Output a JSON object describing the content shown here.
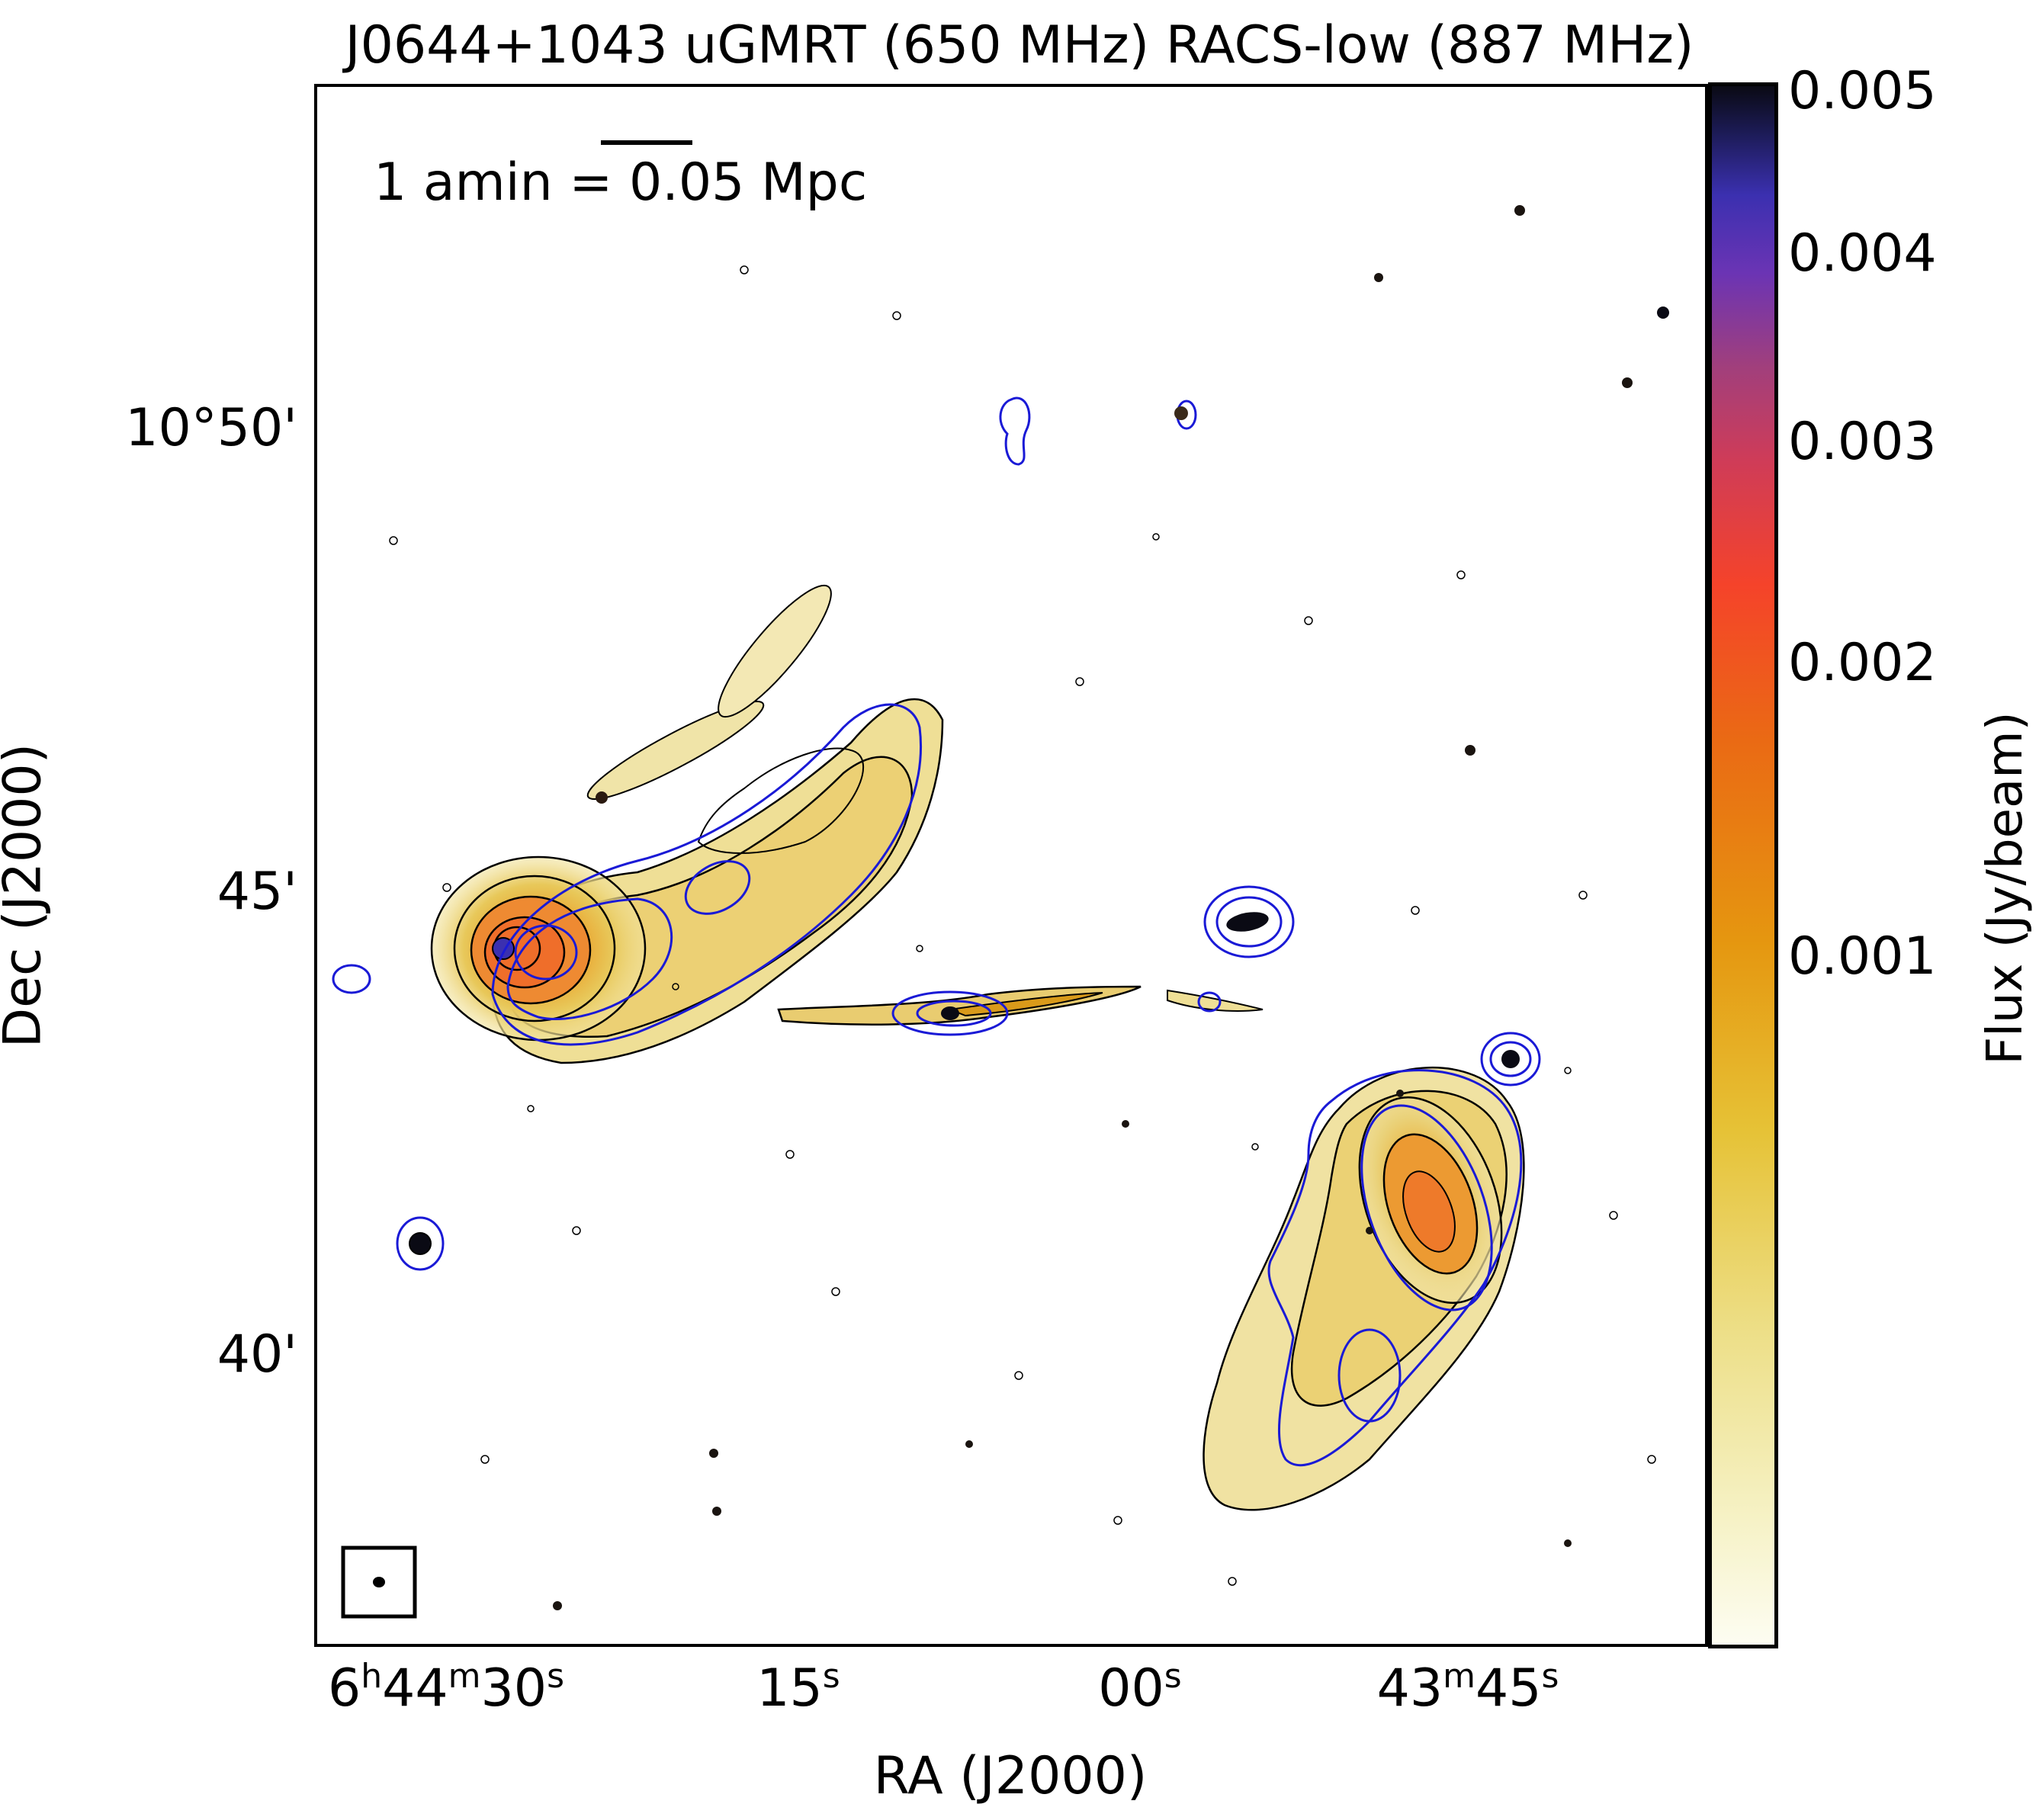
{
  "figure": {
    "title": "J0644+1043 uGMRT (650 MHz) RACS-low (887 MHz)",
    "xlabel": "RA (J2000)",
    "ylabel": "Dec (J2000)",
    "scale_bar_label": "1 amin = 0.05 Mpc",
    "ra_ticks": [
      {
        "h": "6",
        "hsup": "h",
        "m": "44",
        "msup": "m",
        "s": "30",
        "ssup": "s"
      },
      {
        "s": "15",
        "ssup": "s"
      },
      {
        "s": "00",
        "ssup": "s"
      },
      {
        "m": "43",
        "msup": "m",
        "s": "45",
        "ssup": "s"
      }
    ],
    "dec_ticks": [
      "10°50'",
      "45'",
      "40'"
    ],
    "colorbar": {
      "label": "Flux (Jy/beam)",
      "ticks": [
        "0.005",
        "0.004",
        "0.003",
        "0.002",
        "0.001"
      ],
      "colormap": [
        "#fdfdf2",
        "#eddf88",
        "#e6c236",
        "#e59710",
        "#ea6a14",
        "#f5432a",
        "#a13f7c",
        "#6b34b4",
        "#1c1b56",
        "#0a0a14"
      ]
    },
    "contour_colors": {
      "uGMRT": "#000000",
      "RACS-low": "#1a1ad6"
    }
  }
}
